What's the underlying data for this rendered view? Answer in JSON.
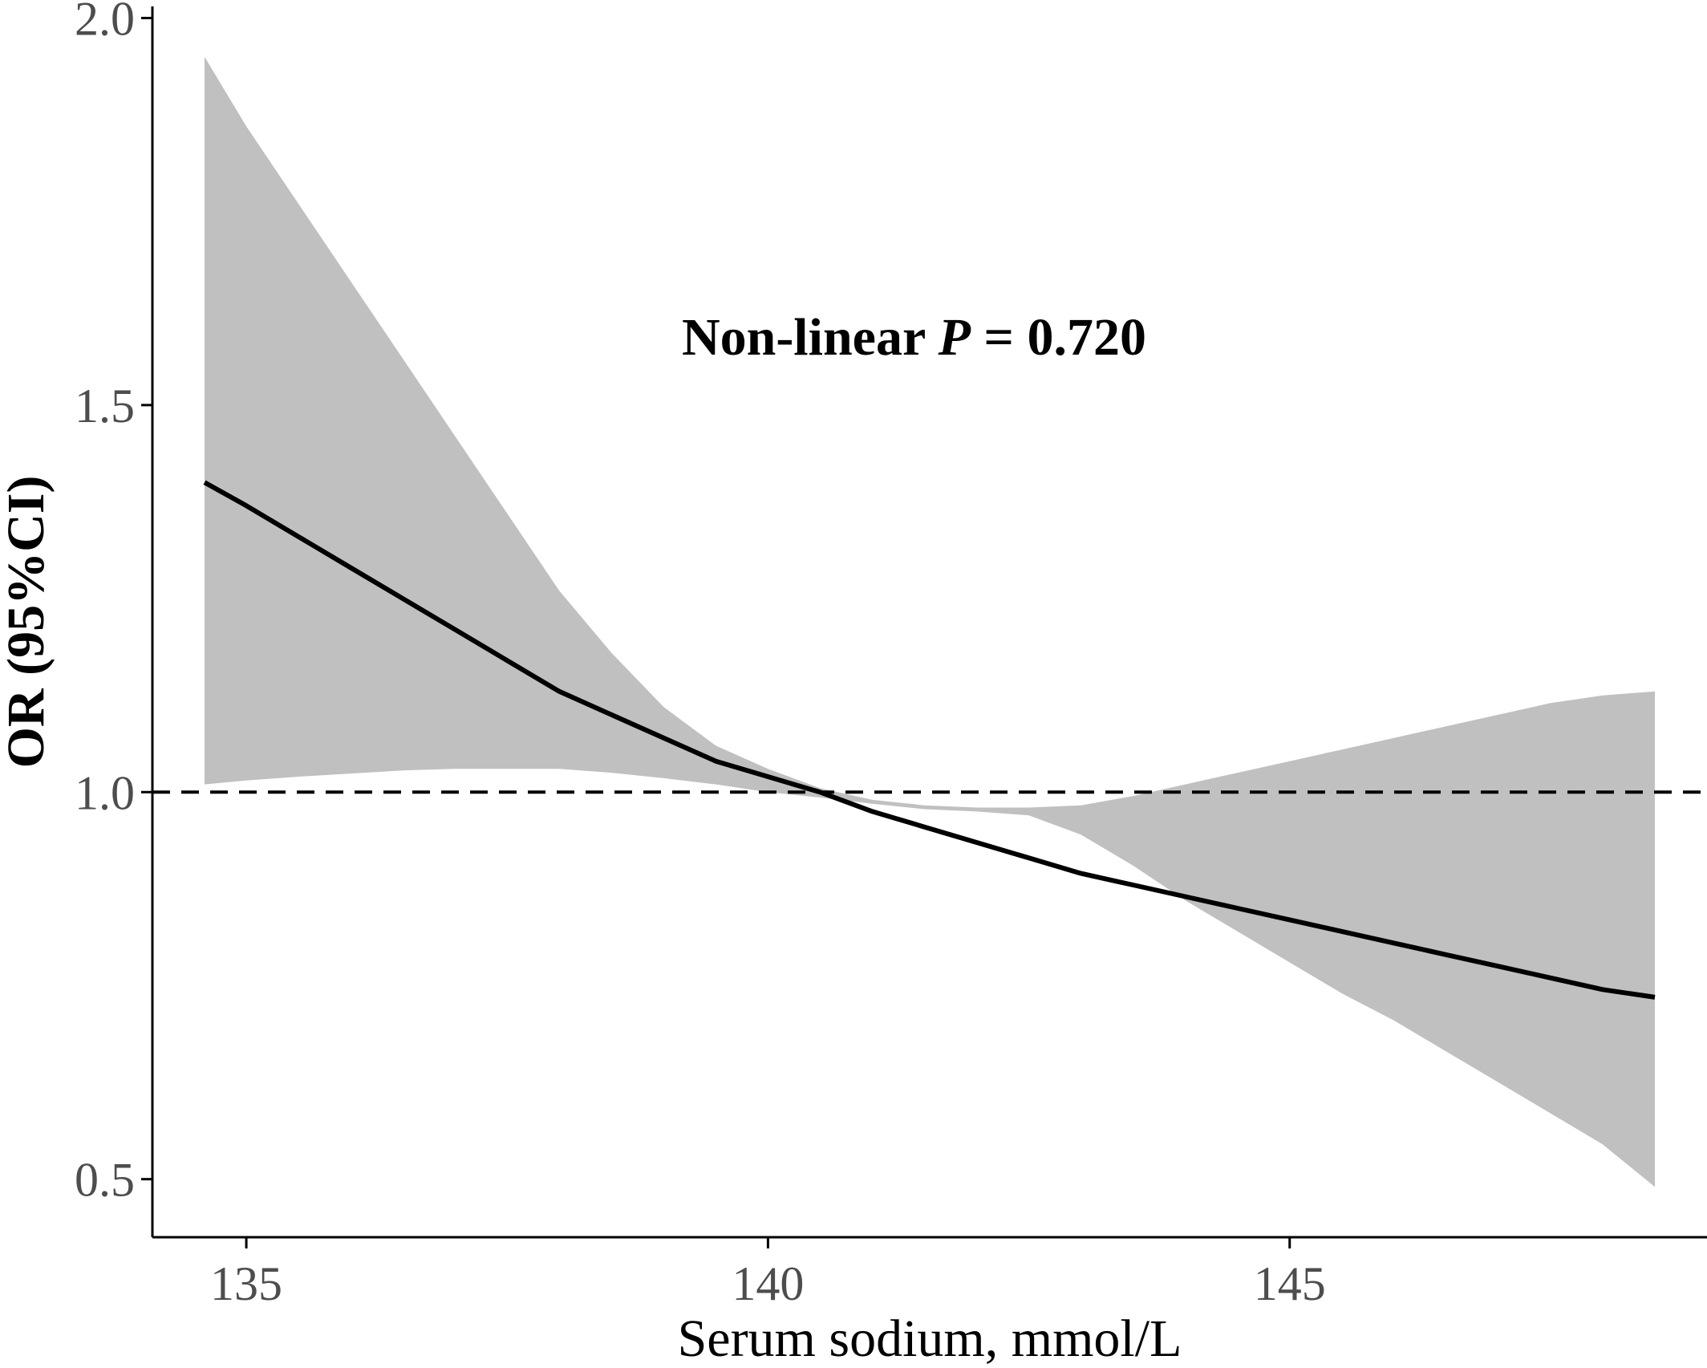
{
  "chart_data": {
    "type": "line",
    "title": "",
    "xlabel": "Serum sodium, mmol/L",
    "ylabel": "OR (95%CI)",
    "xlim": [
      134.1,
      149.0
    ],
    "ylim": [
      0.425,
      2.015
    ],
    "x_ticks": [
      135,
      140,
      145
    ],
    "y_ticks": [
      0.5,
      1.0,
      1.5,
      2.0
    ],
    "x_tick_labels": [
      "135",
      "140",
      "145"
    ],
    "y_tick_labels": [
      "0.5",
      "1.0",
      "1.5",
      "2.0"
    ],
    "grid": false,
    "legend": "none",
    "reference_line": {
      "y": 1.0,
      "style": "dashed"
    },
    "annotation": {
      "prefix": "Non-linear ",
      "italic": "P",
      "suffix": " = 0.720",
      "x": 141.4,
      "y": 1.565
    },
    "colors": {
      "line": "#000000",
      "ribbon": "#c0c0c0",
      "reference": "#000000",
      "axis": "#000000"
    },
    "series": [
      {
        "x": [
          134.6,
          135.0,
          135.5,
          136.0,
          136.5,
          137.0,
          137.5,
          138.0,
          138.5,
          139.0,
          139.5,
          140.0,
          140.5,
          141.0,
          141.5,
          142.0,
          142.5,
          143.0,
          143.5,
          144.0,
          144.5,
          145.0,
          145.5,
          146.0,
          146.5,
          147.0,
          147.5,
          148.0,
          148.5
        ],
        "y": [
          1.4,
          1.37,
          1.33,
          1.29,
          1.25,
          1.21,
          1.17,
          1.13,
          1.1,
          1.07,
          1.04,
          1.02,
          1.0,
          0.975,
          0.955,
          0.935,
          0.915,
          0.895,
          0.88,
          0.865,
          0.85,
          0.835,
          0.82,
          0.805,
          0.79,
          0.775,
          0.76,
          0.745,
          0.735
        ],
        "lower": [
          1.01,
          1.015,
          1.02,
          1.024,
          1.028,
          1.03,
          1.03,
          1.03,
          1.025,
          1.018,
          1.01,
          1.0,
          0.993,
          0.985,
          0.978,
          0.975,
          0.97,
          0.945,
          0.905,
          0.86,
          0.82,
          0.78,
          0.74,
          0.705,
          0.665,
          0.625,
          0.585,
          0.545,
          0.49
        ],
        "upper": [
          1.95,
          1.86,
          1.76,
          1.66,
          1.56,
          1.46,
          1.36,
          1.26,
          1.18,
          1.11,
          1.06,
          1.03,
          1.005,
          0.99,
          0.983,
          0.98,
          0.98,
          0.983,
          0.995,
          1.01,
          1.025,
          1.04,
          1.055,
          1.07,
          1.085,
          1.1,
          1.115,
          1.125,
          1.13
        ]
      }
    ]
  }
}
